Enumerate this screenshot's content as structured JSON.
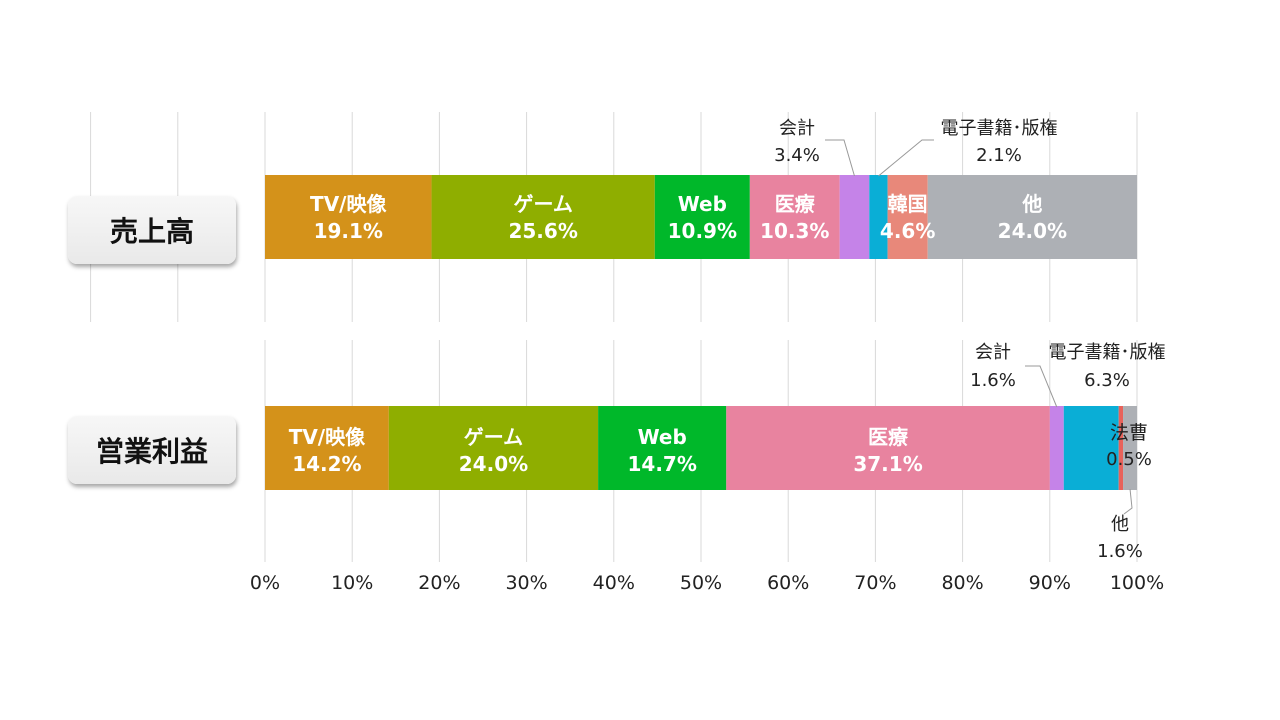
{
  "chart_data": {
    "type": "bar",
    "orientation": "horizontal",
    "stacked": "percent",
    "xlim": [
      0,
      100
    ],
    "x_ticks": [
      "0%",
      "10%",
      "20%",
      "30%",
      "40%",
      "50%",
      "60%",
      "70%",
      "80%",
      "90%",
      "100%"
    ],
    "grid": true,
    "rows": [
      {
        "label": "売上高",
        "segments": [
          {
            "name": "TV/映像",
            "value": 19.1,
            "pct": "19.1%",
            "color": "#d4921a"
          },
          {
            "name": "ゲーム",
            "value": 25.6,
            "pct": "25.6%",
            "color": "#8fae00"
          },
          {
            "name": "Web",
            "value": 10.9,
            "pct": "10.9%",
            "color": "#00b82a"
          },
          {
            "name": "医療",
            "value": 10.3,
            "pct": "10.3%",
            "color": "#e8839f"
          },
          {
            "name": "会計",
            "value": 3.4,
            "pct": "3.4%",
            "color": "#c583e8"
          },
          {
            "name": "電子書籍･版権",
            "value": 2.1,
            "pct": "2.1%",
            "color": "#0aaed6"
          },
          {
            "name": "韓国",
            "value": 4.6,
            "pct": "4.6%",
            "color": "#e8887a"
          },
          {
            "name": "他",
            "value": 24.0,
            "pct": "24.0%",
            "color": "#adb0b5"
          }
        ]
      },
      {
        "label": "営業利益",
        "segments": [
          {
            "name": "TV/映像",
            "value": 14.2,
            "pct": "14.2%",
            "color": "#d4921a"
          },
          {
            "name": "ゲーム",
            "value": 24.0,
            "pct": "24.0%",
            "color": "#8fae00"
          },
          {
            "name": "Web",
            "value": 14.7,
            "pct": "14.7%",
            "color": "#00b82a"
          },
          {
            "name": "医療",
            "value": 37.1,
            "pct": "37.1%",
            "color": "#e8839f"
          },
          {
            "name": "会計",
            "value": 1.6,
            "pct": "1.6%",
            "color": "#c583e8"
          },
          {
            "name": "電子書籍･版権",
            "value": 6.3,
            "pct": "6.3%",
            "color": "#0aaed6"
          },
          {
            "name": "法曹",
            "value": 0.5,
            "pct": "0.5%",
            "color": "#e8625a"
          },
          {
            "name": "他",
            "value": 1.6,
            "pct": "1.6%",
            "color": "#adb0b5"
          }
        ]
      }
    ]
  }
}
